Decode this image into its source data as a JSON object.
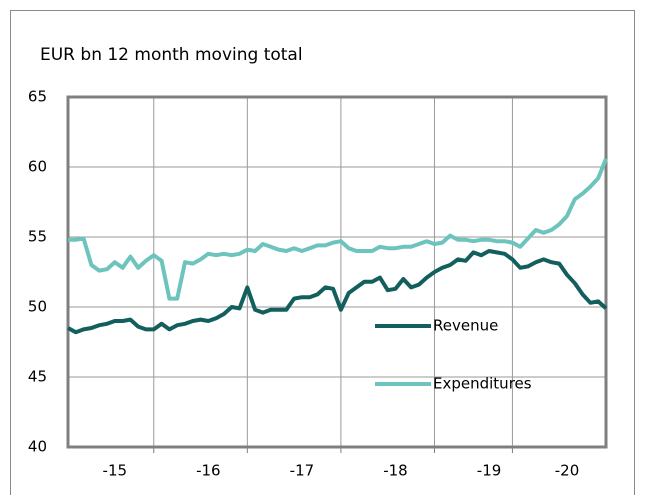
{
  "chart_data": {
    "type": "line",
    "title": "EUR bn  12 month moving total",
    "categories": [
      null,
      null,
      null,
      null,
      null,
      null,
      "-15",
      null,
      null,
      null,
      null,
      null,
      null,
      null,
      null,
      null,
      null,
      null,
      "-16",
      null,
      null,
      null,
      null,
      null,
      null,
      null,
      null,
      null,
      null,
      null,
      "-17",
      null,
      null,
      null,
      null,
      null,
      null,
      null,
      null,
      null,
      null,
      null,
      "-18",
      null,
      null,
      null,
      null,
      null,
      null,
      null,
      null,
      null,
      null,
      null,
      "-19",
      null,
      null,
      null,
      null,
      null,
      null,
      null,
      null,
      null,
      "-20",
      null,
      null,
      null,
      null,
      null
    ],
    "series": [
      {
        "name": "Revenue",
        "color": "#135f5e",
        "values": [
          48.5,
          48.2,
          48.4,
          48.5,
          48.7,
          48.8,
          49.0,
          49.0,
          49.1,
          48.6,
          48.4,
          48.4,
          48.8,
          48.4,
          48.7,
          48.8,
          49.0,
          49.1,
          49.0,
          49.2,
          49.5,
          50.0,
          49.9,
          51.4,
          49.8,
          49.6,
          49.8,
          49.8,
          49.8,
          50.6,
          50.7,
          50.7,
          50.9,
          51.4,
          51.3,
          49.8,
          51.0,
          51.4,
          51.8,
          51.8,
          52.1,
          51.2,
          51.3,
          52.0,
          51.4,
          51.6,
          52.1,
          52.5,
          52.8,
          53.0,
          53.4,
          53.3,
          53.9,
          53.7,
          54.0,
          53.9,
          53.8,
          53.4,
          52.8,
          52.9,
          53.2,
          53.4,
          53.2,
          53.1,
          52.3,
          51.7,
          50.9,
          50.3,
          50.4,
          49.9
        ]
      },
      {
        "name": "Expenditures",
        "color": "#6cc4bd",
        "values": [
          54.8,
          54.8,
          54.9,
          53.0,
          52.6,
          52.7,
          53.2,
          52.8,
          53.6,
          52.8,
          53.3,
          53.7,
          53.3,
          50.6,
          50.6,
          53.2,
          53.1,
          53.4,
          53.8,
          53.7,
          53.8,
          53.7,
          53.8,
          54.1,
          54.0,
          54.5,
          54.3,
          54.1,
          54.0,
          54.2,
          54.0,
          54.2,
          54.4,
          54.4,
          54.6,
          54.7,
          54.2,
          54.0,
          54.0,
          54.0,
          54.3,
          54.2,
          54.2,
          54.3,
          54.3,
          54.5,
          54.7,
          54.5,
          54.6,
          55.1,
          54.8,
          54.8,
          54.7,
          54.8,
          54.8,
          54.7,
          54.7,
          54.6,
          54.3,
          54.9,
          55.5,
          55.3,
          55.5,
          55.9,
          56.5,
          57.7,
          58.1,
          58.6,
          59.2,
          60.6
        ]
      }
    ],
    "ylim": [
      40,
      65
    ],
    "yticks": [
      40,
      45,
      50,
      55,
      60,
      65
    ],
    "grid": true,
    "legend": "lower right"
  }
}
